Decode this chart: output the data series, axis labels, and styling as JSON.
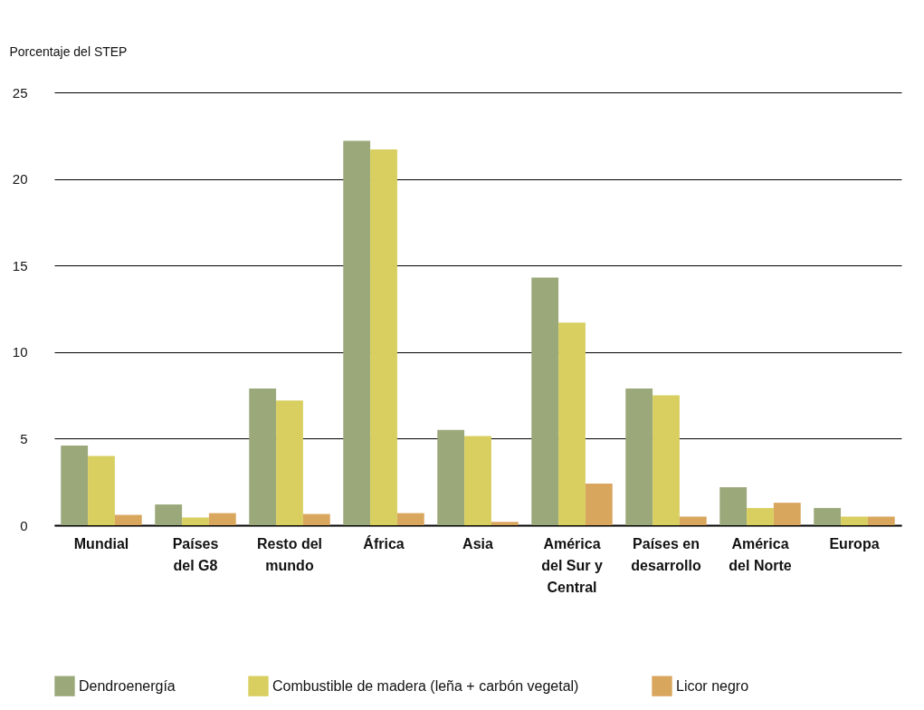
{
  "chart_data": {
    "type": "bar",
    "ylabel": "Porcentaje del STEP",
    "categories": [
      "Mundial",
      "Países del G8",
      "Resto del mundo",
      "África",
      "Asia",
      "América del Sur y Central",
      "Países en desarrollo",
      "América del Norte",
      "Europa"
    ],
    "series": [
      {
        "name": "Dendroenergía",
        "color": "#9aa87a",
        "values": [
          4.6,
          1.2,
          7.9,
          22.2,
          5.5,
          14.3,
          7.9,
          2.2,
          1.0
        ]
      },
      {
        "name": "Combustible de madera (leña + carbón vegetal)",
        "color": "#d8cf60",
        "values": [
          4.0,
          0.45,
          7.2,
          21.7,
          5.15,
          11.7,
          7.5,
          1.0,
          0.5
        ]
      },
      {
        "name": "Licor negro",
        "color": "#d9a65e",
        "values": [
          0.6,
          0.7,
          0.65,
          0.7,
          0.2,
          2.4,
          0.5,
          1.3,
          0.5
        ]
      }
    ],
    "ylim": [
      0,
      25
    ],
    "yticks": [
      0,
      5,
      10,
      15,
      20,
      25
    ],
    "grid": "y",
    "legend": "bottom"
  }
}
